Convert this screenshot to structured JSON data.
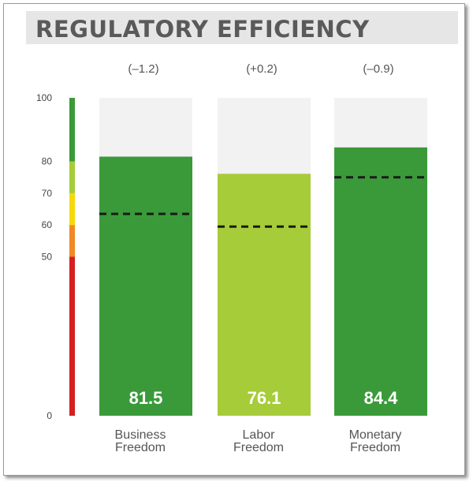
{
  "header": {
    "title": "REGULATORY EFFICIENCY"
  },
  "colors": {
    "bar_high": "#3a9a3a",
    "bar_mid": "#a6cc3a",
    "background_track": "#f2f2f2",
    "scale_red": "#d42020",
    "scale_orange": "#f08a24",
    "scale_yellow": "#f5d90a",
    "scale_lightgreen": "#a6cc3a",
    "scale_green": "#3a9a3a"
  },
  "chart_data": {
    "type": "bar",
    "title": "REGULATORY EFFICIENCY",
    "ylim": [
      0,
      100
    ],
    "yticks": [
      "0",
      "50",
      "60",
      "70",
      "80",
      "100"
    ],
    "ytick_values": [
      0,
      50,
      60,
      70,
      80,
      100
    ],
    "categories": [
      {
        "line1": "Business",
        "line2": "Freedom"
      },
      {
        "line1": "Labor",
        "line2": "Freedom"
      },
      {
        "line1": "Monetary",
        "line2": "Freedom"
      }
    ],
    "values": [
      81.5,
      76.1,
      84.4
    ],
    "value_labels": [
      "81.5",
      "76.1",
      "84.4"
    ],
    "changes": [
      "(–1.2)",
      "(+0.2)",
      "(–0.9)"
    ],
    "bar_colors": [
      "#3a9a3a",
      "#a6cc3a",
      "#3a9a3a"
    ],
    "benchmark_values": [
      63.5,
      59.5,
      75.0
    ],
    "scale_bands": [
      {
        "from": 0,
        "to": 50,
        "color": "#d42020"
      },
      {
        "from": 50,
        "to": 60,
        "color": "#f08a24"
      },
      {
        "from": 60,
        "to": 70,
        "color": "#f5d90a"
      },
      {
        "from": 70,
        "to": 80,
        "color": "#a6cc3a"
      },
      {
        "from": 80,
        "to": 100,
        "color": "#3a9a3a"
      }
    ]
  }
}
